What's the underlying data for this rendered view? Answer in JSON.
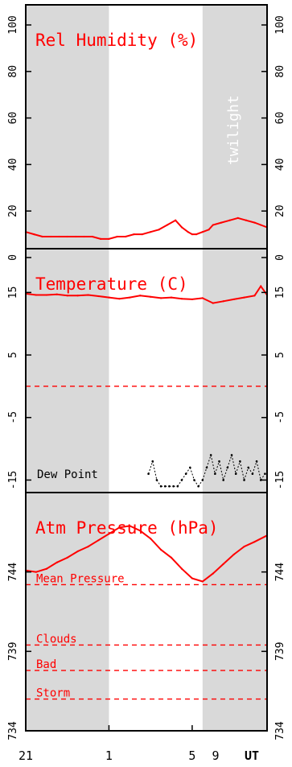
{
  "colors": {
    "series": "#ff0000",
    "dew": "#000000",
    "shade": "#d9d9d9",
    "reference": "#ff0000",
    "axis": "#000000"
  },
  "x_axis": {
    "range_hours": [
      21,
      32.6
    ],
    "ticks": [
      {
        "value": 21,
        "label": "21"
      },
      {
        "value": 25,
        "label": "1"
      },
      {
        "value": 29,
        "label": "5"
      },
      {
        "value": 33,
        "label": "9"
      }
    ],
    "unit": "UT"
  },
  "twilight_label": "twilight",
  "shaded_hours": [
    [
      21,
      25
    ],
    [
      29.5,
      32.6
    ]
  ],
  "chart_data": [
    {
      "type": "line",
      "title": "Rel Humidity (%)",
      "ylim": [
        0,
        100
      ],
      "yticks": [
        "0",
        "20",
        "40",
        "60",
        "80",
        "100"
      ],
      "x": [
        21.0,
        21.4,
        21.8,
        22.2,
        22.6,
        23.0,
        23.4,
        23.8,
        24.2,
        24.6,
        25.0,
        25.4,
        25.8,
        26.2,
        26.6,
        27.0,
        27.4,
        27.8,
        28.2,
        28.5,
        28.8,
        29.0,
        29.2,
        29.5,
        29.8,
        30.0,
        30.4,
        30.8,
        31.2,
        31.6,
        32.0,
        32.3,
        32.6
      ],
      "series": [
        {
          "values": [
            11,
            10,
            9,
            9,
            9,
            9,
            9,
            9,
            9,
            8,
            8,
            9,
            9,
            10,
            10,
            11,
            12,
            14,
            16,
            13,
            11,
            10,
            10,
            11,
            12,
            14,
            15,
            16,
            17,
            16,
            15,
            14,
            13
          ]
        }
      ]
    },
    {
      "type": "line",
      "title": "Temperature (C)",
      "ylim": [
        -17,
        22
      ],
      "yticks": [
        "-15",
        "-5",
        "5",
        "15"
      ],
      "references": [
        {
          "value": 0,
          "label": ""
        }
      ],
      "x": [
        21.0,
        21.5,
        22.0,
        22.5,
        23.0,
        23.5,
        24.0,
        24.5,
        25.0,
        25.5,
        26.0,
        26.5,
        27.0,
        27.5,
        28.0,
        28.5,
        29.0,
        29.5,
        30.0,
        30.5,
        31.0,
        31.5,
        32.0,
        32.3,
        32.6
      ],
      "series": [
        {
          "values": [
            14.8,
            14.6,
            14.6,
            14.7,
            14.5,
            14.5,
            14.6,
            14.4,
            14.2,
            14.0,
            14.2,
            14.5,
            14.3,
            14.1,
            14.2,
            14.0,
            13.9,
            14.1,
            13.3,
            13.6,
            13.9,
            14.2,
            14.5,
            16.0,
            14.6
          ]
        }
      ],
      "dew_point": {
        "label": "Dew Point",
        "x": [
          26.9,
          27.1,
          27.3,
          27.5,
          27.7,
          27.9,
          28.1,
          28.3,
          28.5,
          28.7,
          28.9,
          29.1,
          29.3,
          29.5,
          29.7,
          29.9,
          30.1,
          30.3,
          30.5,
          30.7,
          30.9,
          31.1,
          31.3,
          31.5,
          31.7,
          31.9,
          32.1,
          32.3,
          32.5
        ],
        "values": [
          -14,
          -12,
          -15,
          -16,
          -16,
          -16,
          -16,
          -16,
          -15,
          -14,
          -13,
          -15,
          -16,
          -15,
          -13,
          -11,
          -14,
          -12,
          -15,
          -13,
          -11,
          -14,
          -12,
          -15,
          -13,
          -14,
          -12,
          -15,
          -14
        ]
      }
    },
    {
      "type": "line",
      "title": "Atm Pressure (hPa)",
      "ylim": [
        734,
        749
      ],
      "yticks": [
        "734",
        "739",
        "744"
      ],
      "references": [
        {
          "value": 743.2,
          "label": "Mean Pressure"
        },
        {
          "value": 739.4,
          "label": "Clouds"
        },
        {
          "value": 737.8,
          "label": "Bad"
        },
        {
          "value": 736.0,
          "label": "Storm"
        }
      ],
      "x": [
        21.0,
        21.5,
        22.0,
        22.5,
        23.0,
        23.5,
        24.0,
        24.5,
        25.0,
        25.5,
        26.0,
        26.5,
        27.0,
        27.5,
        28.0,
        28.5,
        29.0,
        29.5,
        30.0,
        30.5,
        31.0,
        31.5,
        32.0,
        32.6
      ],
      "series": [
        {
          "values": [
            744.1,
            744.0,
            744.2,
            744.6,
            744.9,
            745.3,
            745.6,
            746.0,
            746.4,
            746.8,
            746.9,
            746.6,
            746.1,
            745.4,
            744.9,
            744.2,
            743.6,
            743.4,
            743.9,
            744.5,
            745.1,
            745.6,
            745.9,
            746.3
          ]
        }
      ]
    }
  ]
}
